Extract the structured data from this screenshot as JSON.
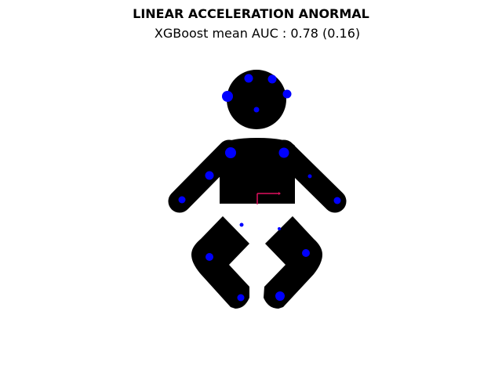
{
  "figure": {
    "title": "LINEAR ACCELERATION ANORMAL",
    "subtitle": "XGBoost mean AUC : 0.78 (0.16)"
  },
  "colors": {
    "body": "#000000",
    "marker": "#0000ff",
    "axis_x": "#e0115f",
    "axis_y": "#e0115f",
    "background": "#ffffff"
  }
}
